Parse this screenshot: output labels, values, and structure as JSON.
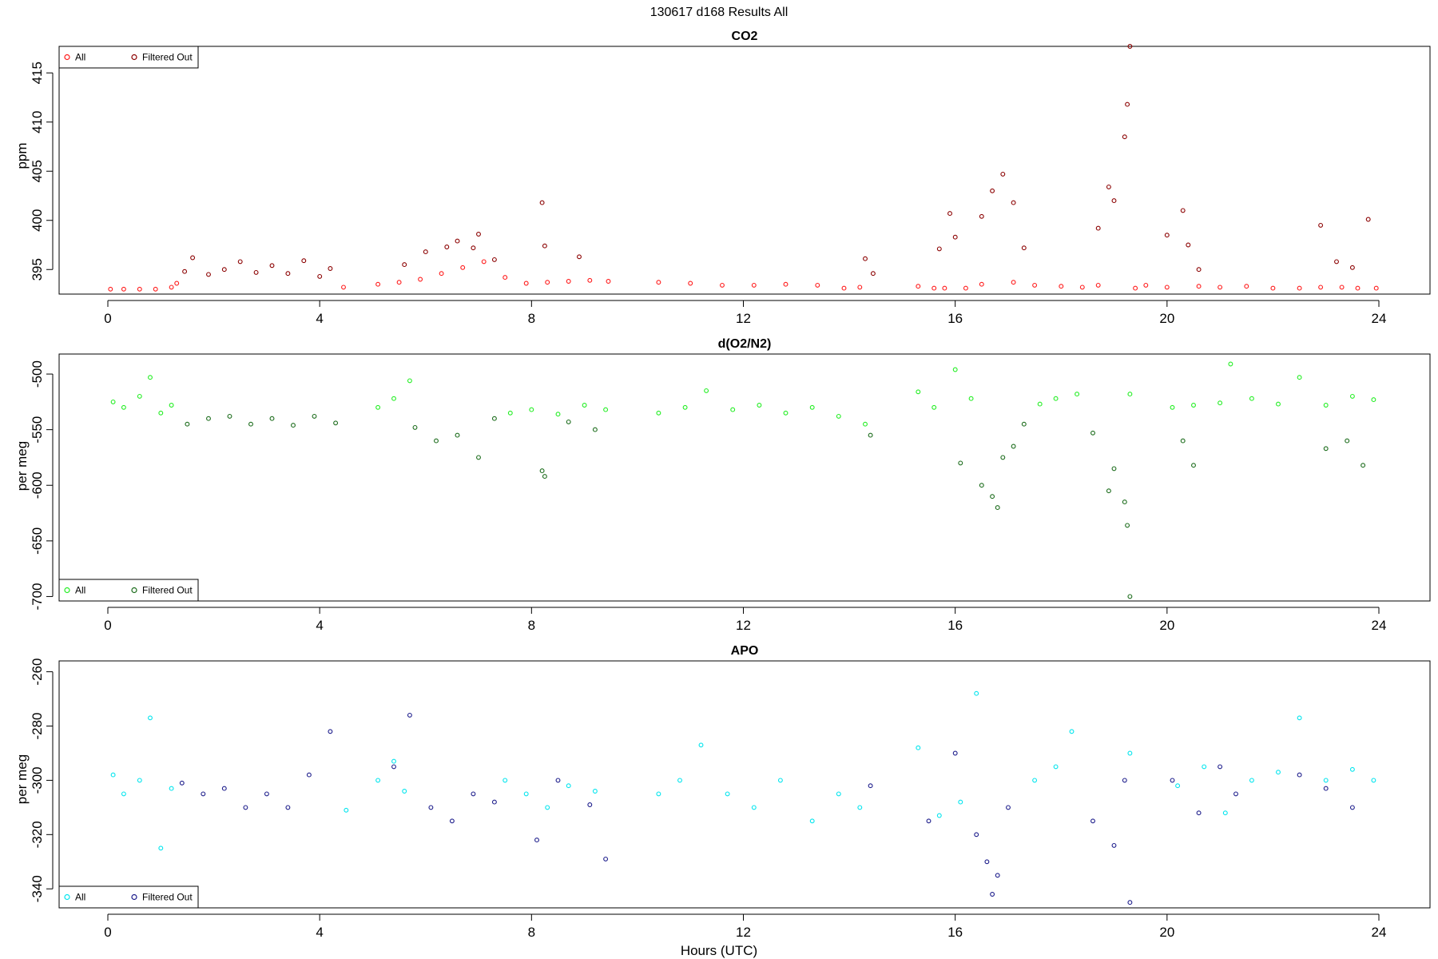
{
  "figure": {
    "title": "130617   d168   Results All",
    "xlabel": "Hours (UTC)"
  },
  "chart_data": [
    {
      "type": "scatter",
      "title": "CO2",
      "ylabel": "ppm",
      "xlim": [
        0,
        24
      ],
      "ylim": [
        392.5,
        417.7
      ],
      "xticks": [
        "0",
        "4",
        "8",
        "12",
        "16",
        "20",
        "24"
      ],
      "yticks": [
        "395",
        "400",
        "405",
        "410",
        "415"
      ],
      "grid": false,
      "legend": {
        "placement": "top-left",
        "entries": [
          "All",
          "Filtered Out"
        ]
      },
      "colors": {
        "all": "#ff1a1a",
        "filtered": "#8b0000"
      },
      "series": [
        {
          "name": "All",
          "x": [
            0.05,
            0.3,
            0.6,
            0.9,
            1.2,
            1.3,
            4.45,
            5.1,
            5.5,
            5.9,
            6.3,
            6.7,
            7.1,
            7.5,
            7.9,
            8.3,
            8.7,
            9.1,
            9.45,
            10.4,
            11.0,
            11.6,
            12.2,
            12.8,
            13.4,
            13.9,
            14.2,
            15.3,
            15.6,
            15.8,
            16.2,
            16.5,
            17.1,
            17.5,
            18.0,
            18.4,
            18.7,
            19.4,
            19.6,
            20.0,
            20.6,
            21.0,
            21.5,
            22.0,
            22.5,
            22.9,
            23.3,
            23.6,
            23.95
          ],
          "y": [
            393.0,
            393.0,
            393.0,
            393.0,
            393.2,
            393.6,
            393.2,
            393.5,
            393.7,
            394.0,
            394.6,
            395.2,
            395.8,
            394.2,
            393.6,
            393.7,
            393.8,
            393.9,
            393.8,
            393.7,
            393.6,
            393.4,
            393.4,
            393.5,
            393.4,
            393.1,
            393.2,
            393.3,
            393.1,
            393.1,
            393.1,
            393.5,
            393.7,
            393.4,
            393.3,
            393.2,
            393.4,
            393.1,
            393.4,
            393.2,
            393.3,
            393.2,
            393.3,
            393.1,
            393.1,
            393.2,
            393.2,
            393.1,
            393.1
          ]
        },
        {
          "name": "Filtered Out",
          "x": [
            1.45,
            1.6,
            1.9,
            2.2,
            2.5,
            2.8,
            3.1,
            3.4,
            3.7,
            4.0,
            4.2,
            5.6,
            6.0,
            6.4,
            6.6,
            6.9,
            7.0,
            7.3,
            8.2,
            8.25,
            8.9,
            14.3,
            14.45,
            15.7,
            15.9,
            16.0,
            16.5,
            16.7,
            16.9,
            17.1,
            17.3,
            18.7,
            18.9,
            19.0,
            19.2,
            19.25,
            19.3,
            20.0,
            20.3,
            20.4,
            20.6,
            22.9,
            23.2,
            23.5,
            23.8
          ],
          "y": [
            394.8,
            396.2,
            394.5,
            395.0,
            395.8,
            394.7,
            395.4,
            394.6,
            395.9,
            394.3,
            395.1,
            395.5,
            396.8,
            397.3,
            397.9,
            397.2,
            398.6,
            396.0,
            401.8,
            397.4,
            396.3,
            396.1,
            394.6,
            397.1,
            400.7,
            398.3,
            400.4,
            403.0,
            404.7,
            401.8,
            397.2,
            399.2,
            403.4,
            402.0,
            408.5,
            411.8,
            417.7,
            398.5,
            401.0,
            397.5,
            395.0,
            399.5,
            395.8,
            395.2,
            400.1
          ]
        }
      ]
    },
    {
      "type": "scatter",
      "title": "d(O2/N2)",
      "ylabel": "per meg",
      "xlim": [
        0,
        24
      ],
      "ylim": [
        -704,
        -482
      ],
      "xticks": [
        "0",
        "4",
        "8",
        "12",
        "16",
        "20",
        "24"
      ],
      "yticks": [
        "-500",
        "-550",
        "-600",
        "-650",
        "-700"
      ],
      "grid": false,
      "legend": {
        "placement": "bottom-left",
        "entries": [
          "All",
          "Filtered Out"
        ]
      },
      "colors": {
        "all": "#22ee22",
        "filtered": "#1a6b1a"
      },
      "series": [
        {
          "name": "All",
          "x": [
            0.1,
            0.3,
            0.6,
            0.8,
            1.0,
            1.2,
            5.1,
            5.4,
            5.7,
            7.6,
            8.0,
            8.5,
            9.0,
            9.4,
            10.4,
            10.9,
            11.3,
            11.8,
            12.3,
            12.8,
            13.3,
            13.8,
            14.3,
            15.3,
            15.6,
            16.0,
            16.3,
            17.6,
            17.9,
            18.3,
            19.3,
            20.1,
            20.5,
            21.0,
            21.2,
            21.6,
            22.1,
            22.5,
            23.0,
            23.5,
            23.9
          ],
          "y": [
            -525,
            -530,
            -520,
            -503,
            -535,
            -528,
            -530,
            -522,
            -506,
            -535,
            -532,
            -536,
            -528,
            -532,
            -535,
            -530,
            -515,
            -532,
            -528,
            -535,
            -530,
            -538,
            -545,
            -516,
            -530,
            -496,
            -522,
            -527,
            -522,
            -518,
            -518,
            -530,
            -528,
            -526,
            -491,
            -522,
            -527,
            -503,
            -528,
            -520,
            -523
          ]
        },
        {
          "name": "Filtered Out",
          "x": [
            1.5,
            1.9,
            2.3,
            2.7,
            3.1,
            3.5,
            3.9,
            4.3,
            5.8,
            6.2,
            6.6,
            7.0,
            7.3,
            8.2,
            8.25,
            8.7,
            9.2,
            14.4,
            16.1,
            16.5,
            16.7,
            16.8,
            16.9,
            17.1,
            17.3,
            18.6,
            18.9,
            19.0,
            19.2,
            19.25,
            19.3,
            20.3,
            20.5,
            23.0,
            23.4,
            23.7
          ],
          "y": [
            -545,
            -540,
            -538,
            -545,
            -540,
            -546,
            -538,
            -544,
            -548,
            -560,
            -555,
            -575,
            -540,
            -587,
            -592,
            -543,
            -550,
            -555,
            -580,
            -600,
            -610,
            -620,
            -575,
            -565,
            -545,
            -553,
            -605,
            -585,
            -615,
            -636,
            -700,
            -560,
            -582,
            -567,
            -560,
            -582
          ]
        }
      ]
    },
    {
      "type": "scatter",
      "title": "APO",
      "ylabel": "per meg",
      "xlim": [
        0,
        24
      ],
      "ylim": [
        -347,
        -256
      ],
      "xticks": [
        "0",
        "4",
        "8",
        "12",
        "16",
        "20",
        "24"
      ],
      "yticks": [
        "-260",
        "-280",
        "-300",
        "-320",
        "-340"
      ],
      "grid": false,
      "legend": {
        "placement": "bottom-left",
        "entries": [
          "All",
          "Filtered Out"
        ]
      },
      "colors": {
        "all": "#00e5ee",
        "filtered": "#1c1c8b"
      },
      "series": [
        {
          "name": "All",
          "x": [
            0.1,
            0.3,
            0.6,
            0.8,
            1.0,
            1.2,
            4.5,
            5.1,
            5.4,
            5.6,
            7.5,
            7.9,
            8.3,
            8.7,
            9.2,
            10.4,
            10.8,
            11.2,
            11.7,
            12.2,
            12.7,
            13.3,
            13.8,
            14.2,
            15.3,
            15.7,
            16.1,
            16.4,
            17.5,
            17.9,
            18.2,
            19.3,
            20.2,
            20.7,
            21.1,
            21.6,
            22.1,
            22.5,
            23.0,
            23.5,
            23.9
          ],
          "y": [
            -298,
            -305,
            -300,
            -277,
            -325,
            -303,
            -311,
            -300,
            -293,
            -304,
            -300,
            -305,
            -310,
            -302,
            -304,
            -305,
            -300,
            -287,
            -305,
            -310,
            -300,
            -315,
            -305,
            -310,
            -288,
            -313,
            -308,
            -268,
            -300,
            -295,
            -282,
            -290,
            -302,
            -295,
            -312,
            -300,
            -297,
            -277,
            -300,
            -296,
            -300
          ]
        },
        {
          "name": "Filtered Out",
          "x": [
            1.4,
            1.8,
            2.2,
            2.6,
            3.0,
            3.4,
            3.8,
            4.2,
            5.4,
            5.7,
            6.1,
            6.5,
            6.9,
            7.3,
            8.1,
            8.5,
            9.1,
            9.4,
            14.4,
            15.5,
            16.0,
            16.4,
            16.6,
            16.7,
            16.8,
            17.0,
            18.6,
            19.0,
            19.2,
            19.3,
            20.1,
            20.6,
            21.0,
            21.3,
            22.5,
            23.0,
            23.5
          ],
          "y": [
            -301,
            -305,
            -303,
            -310,
            -305,
            -310,
            -298,
            -282,
            -295,
            -276,
            -310,
            -315,
            -305,
            -308,
            -322,
            -300,
            -309,
            -329,
            -302,
            -315,
            -290,
            -320,
            -330,
            -342,
            -335,
            -310,
            -315,
            -324,
            -300,
            -345,
            -300,
            -312,
            -295,
            -305,
            -298,
            -303,
            -310
          ]
        }
      ]
    }
  ]
}
